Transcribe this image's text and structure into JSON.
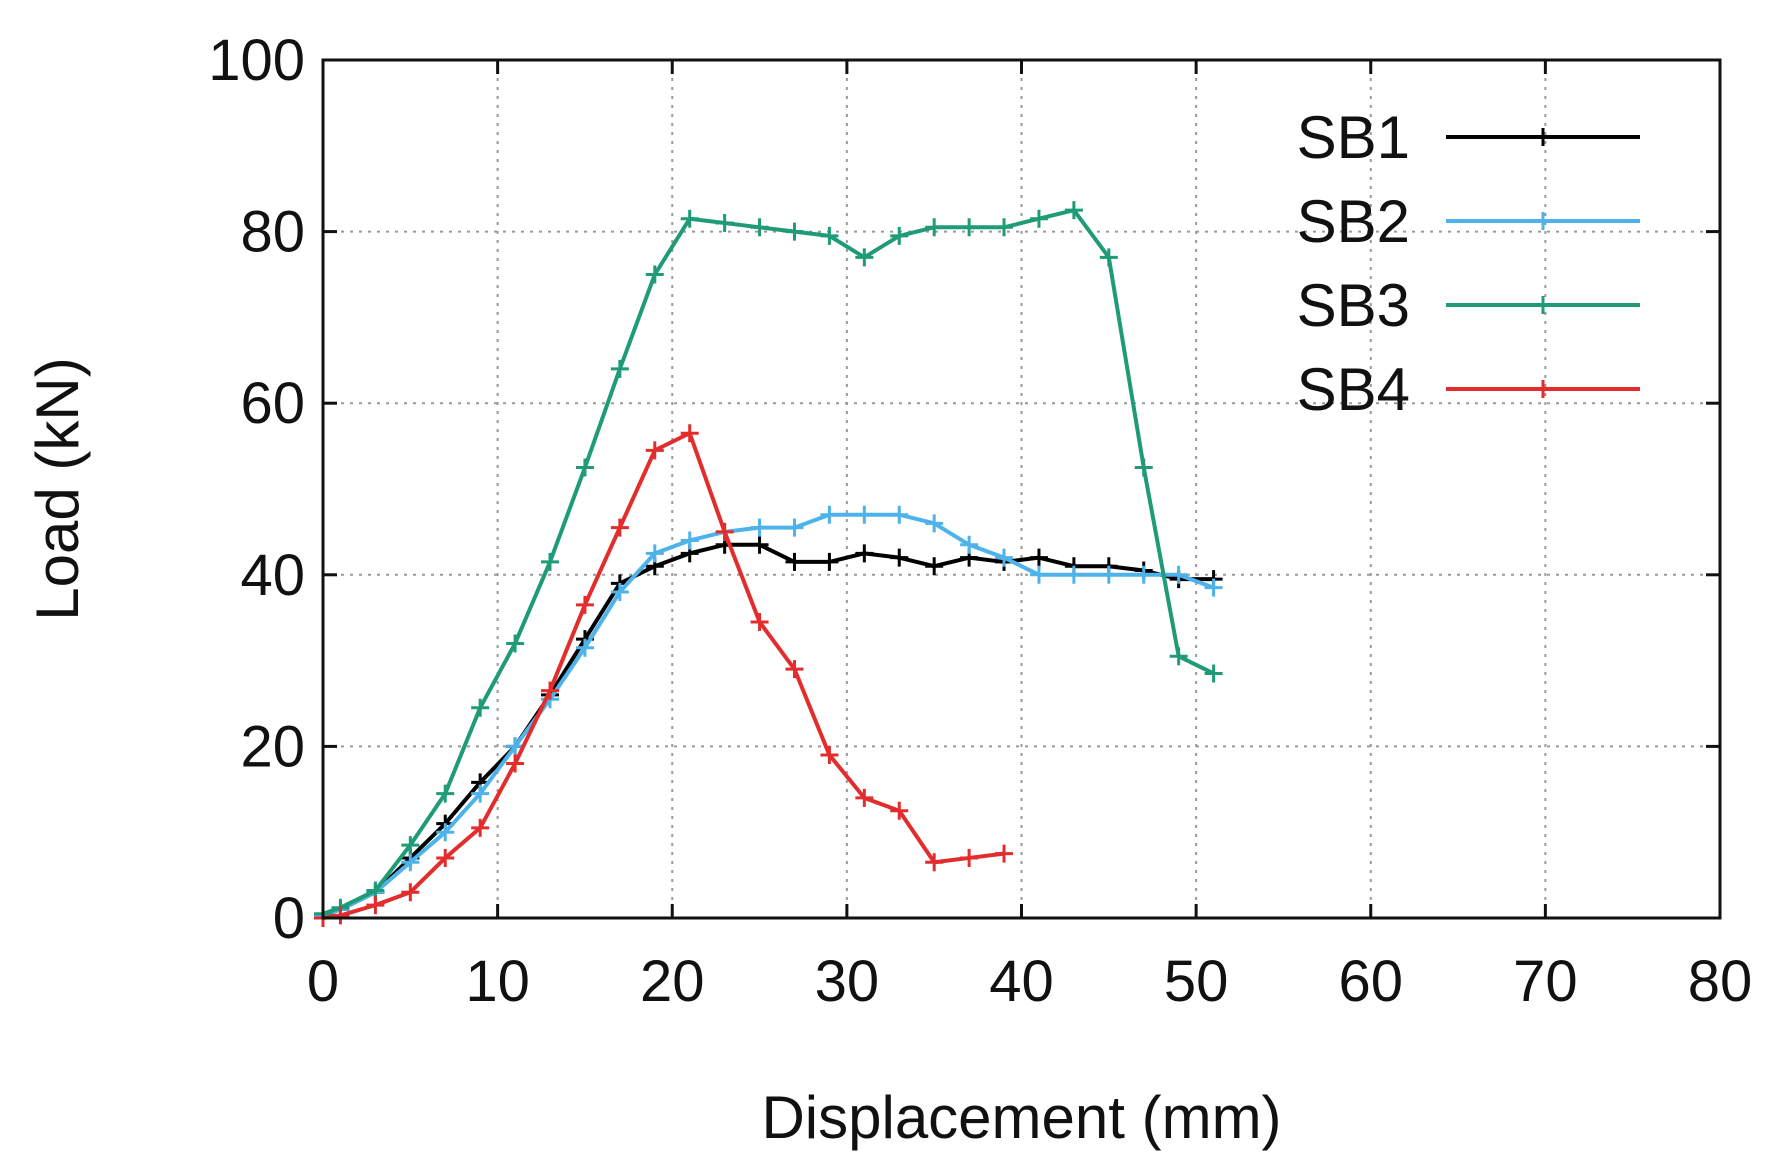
{
  "chart_data": {
    "type": "line",
    "title": "",
    "xlabel": "Displacement (mm)",
    "ylabel": "Load (kN)",
    "xlim": [
      0,
      80
    ],
    "ylim": [
      0,
      100
    ],
    "xticks": [
      0,
      10,
      20,
      30,
      40,
      50,
      60,
      70,
      80
    ],
    "yticks": [
      0,
      20,
      40,
      60,
      80,
      100
    ],
    "grid": true,
    "legend_position": "top-right",
    "series": [
      {
        "name": "SB1",
        "color": "#000000",
        "marker": "plus",
        "x": [
          0,
          1,
          3,
          5,
          7,
          9,
          11,
          13,
          15,
          17,
          19,
          21,
          23,
          25,
          27,
          29,
          31,
          33,
          35,
          37,
          39,
          41,
          43,
          45,
          47,
          49,
          51
        ],
        "y": [
          0.3,
          1,
          3,
          7,
          11,
          15.8,
          20,
          26,
          32.5,
          39,
          41,
          42.5,
          43.5,
          43.5,
          41.5,
          41.5,
          42.5,
          42,
          41,
          42,
          41.5,
          42,
          41,
          41,
          40.5,
          39.5,
          39.5
        ]
      },
      {
        "name": "SB2",
        "color": "#4db3ea",
        "marker": "plus",
        "x": [
          0,
          1,
          3,
          5,
          7,
          9,
          11,
          13,
          15,
          17,
          19,
          21,
          23,
          25,
          27,
          29,
          31,
          33,
          35,
          37,
          39,
          41,
          43,
          45,
          47,
          49,
          51
        ],
        "y": [
          0.3,
          1,
          3,
          6.5,
          10,
          14.5,
          20,
          25.5,
          31.5,
          38,
          42.5,
          44,
          45,
          45.5,
          45.5,
          47,
          47,
          47,
          46,
          43.5,
          42,
          40,
          40,
          40,
          40,
          40,
          38.5
        ]
      },
      {
        "name": "SB3",
        "color": "#1f9c77",
        "marker": "plus",
        "x": [
          0,
          1,
          3,
          5,
          7,
          9,
          11,
          13,
          15,
          17,
          19,
          21,
          23,
          25,
          27,
          29,
          31,
          33,
          35,
          37,
          39,
          41,
          43,
          45,
          47,
          49,
          51
        ],
        "y": [
          0.5,
          1.2,
          3.2,
          8.5,
          14.5,
          24.5,
          32,
          41.5,
          52.5,
          64,
          75,
          81.5,
          81,
          80.5,
          80,
          79.5,
          77,
          79.5,
          80.5,
          80.5,
          80.5,
          81.5,
          82.5,
          77,
          52.5,
          30.5,
          28.5
        ]
      },
      {
        "name": "SB4",
        "color": "#e32d2d",
        "marker": "plus",
        "x": [
          0,
          1,
          3,
          5,
          7,
          9,
          11,
          13,
          15,
          17,
          19,
          21,
          23,
          25,
          27,
          29,
          31,
          33,
          35,
          37,
          39
        ],
        "y": [
          0,
          0.3,
          1.5,
          3,
          7,
          10.5,
          18,
          26.5,
          36.5,
          45.5,
          54.5,
          56.5,
          45,
          34.5,
          29,
          19,
          14,
          12.5,
          6.5,
          7,
          7.5
        ]
      }
    ]
  }
}
